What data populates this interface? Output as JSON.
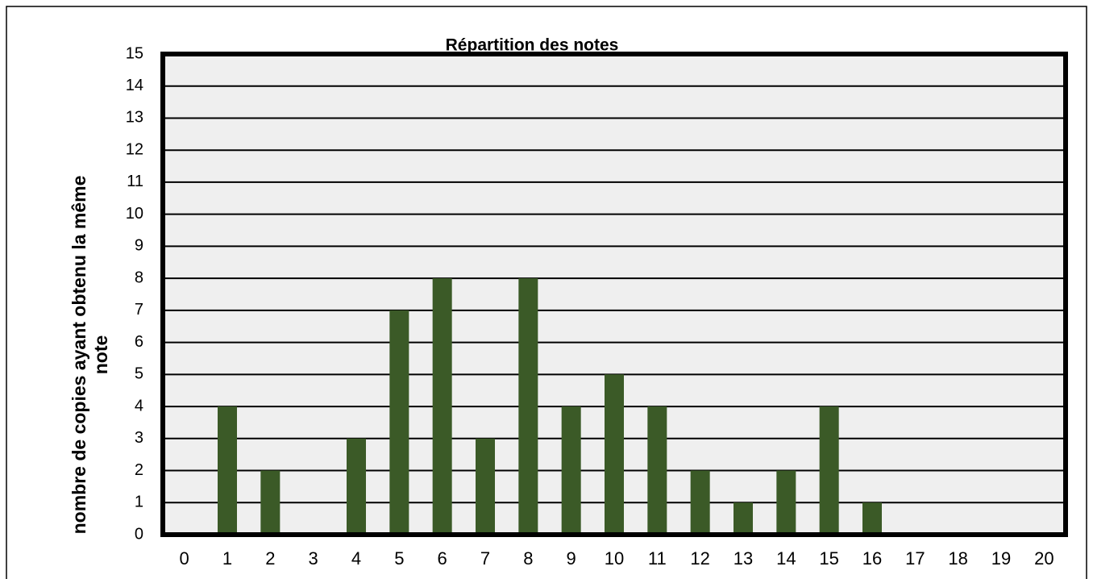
{
  "chart_data": {
    "type": "bar",
    "title": "Répartition des notes",
    "y_label": [
      "nombre de copies ayant obtenu la même",
      "note"
    ],
    "categories": [
      "0",
      "1",
      "2",
      "3",
      "4",
      "5",
      "6",
      "7",
      "8",
      "9",
      "10",
      "11",
      "12",
      "13",
      "14",
      "15",
      "16",
      "17",
      "18",
      "19",
      "20"
    ],
    "values": [
      0,
      4,
      2,
      0,
      3,
      7,
      8,
      3,
      8,
      4,
      5,
      4,
      2,
      1,
      2,
      4,
      1,
      0,
      0,
      0,
      0
    ],
    "color": "#3b5a27",
    "ylim": [
      0,
      15
    ],
    "yticks": [
      0,
      1,
      2,
      3,
      4,
      5,
      6,
      7,
      8,
      9,
      10,
      11,
      12,
      13,
      14,
      15
    ],
    "grid": true
  }
}
